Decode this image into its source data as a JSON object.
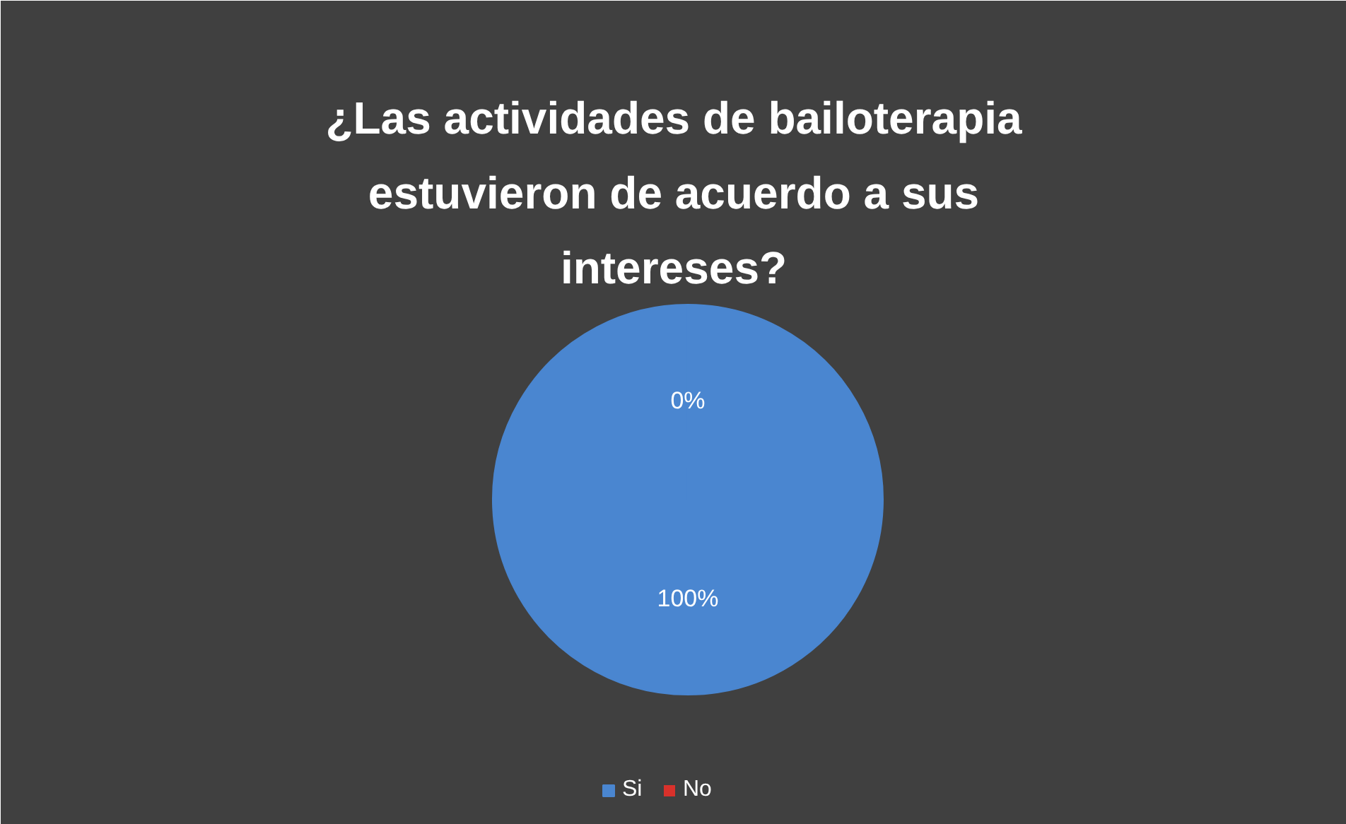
{
  "chart_data": {
    "type": "pie",
    "title": "¿Las actividades de bailoterapia estuvieron de acuerdo a sus intereses?",
    "categories": [
      "Si",
      "No"
    ],
    "values": [
      100,
      0
    ],
    "colors": [
      "#4a86d0",
      "#d9312b"
    ],
    "value_labels": [
      "100%",
      "0%"
    ],
    "legend": "bottom"
  }
}
